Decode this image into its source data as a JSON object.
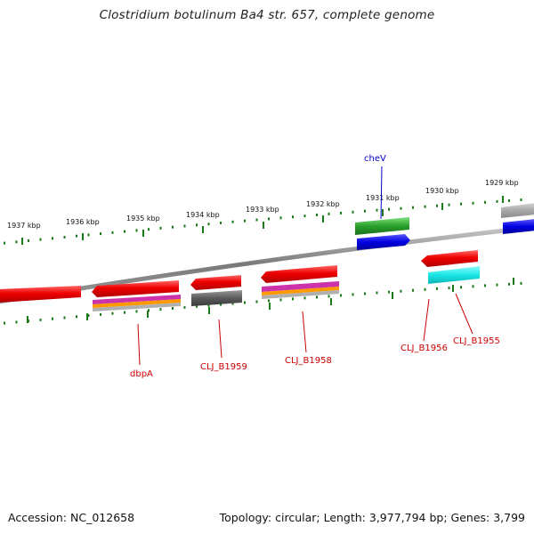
{
  "title": "Clostridium botulinum Ba4 str. 657, complete genome",
  "footer": {
    "accession": "Accession: NC_012658",
    "stats": "Topology: circular; Length: 3,977,794 bp; Genes: 3,799"
  },
  "ticks": [
    "1937 kbp",
    "1936 kbp",
    "1935 kbp",
    "1934 kbp",
    "1933 kbp",
    "1932 kbp",
    "1931 kbp",
    "1930 kbp",
    "1929 kbp"
  ],
  "genes": {
    "chev": "cheV",
    "dbpa": "dbpA",
    "clj_b1959": "CLJ_B1959",
    "clj_b1958": "CLJ_B1958",
    "clj_b1956": "CLJ_B1956",
    "clj_b1955": "CLJ_B1955"
  },
  "colors": {
    "forward_cds": "#e60000",
    "reverse_cds": "#e60000",
    "forward_alt": "#2aa02a",
    "blue_feature": "#0000e0",
    "cyan_feature": "#19e6e6",
    "gray_feature": "#5a5a5a",
    "backbone": "#8a8a8a",
    "tick": "#1a7a1a",
    "label_red": "#cc0000",
    "label_blue": "#0000cc"
  }
}
